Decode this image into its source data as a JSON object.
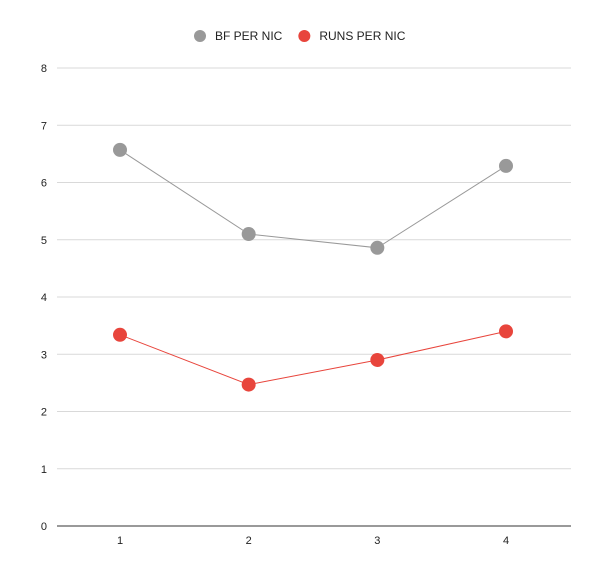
{
  "chart_data": {
    "type": "line",
    "title": "",
    "xlabel": "",
    "ylabel": "",
    "x": [
      1,
      2,
      3,
      4
    ],
    "ylim": [
      0,
      8
    ],
    "yticks": [
      0,
      1,
      2,
      3,
      4,
      5,
      6,
      7,
      8
    ],
    "grid": true,
    "legend_position": "top-center",
    "series": [
      {
        "name": "BF PER NIC",
        "color": "#999999",
        "values": [
          6.57,
          5.1,
          4.86,
          6.29
        ]
      },
      {
        "name": "RUNS PER NIC",
        "color": "#e8453c",
        "values": [
          3.34,
          2.47,
          2.9,
          3.4
        ]
      }
    ]
  }
}
